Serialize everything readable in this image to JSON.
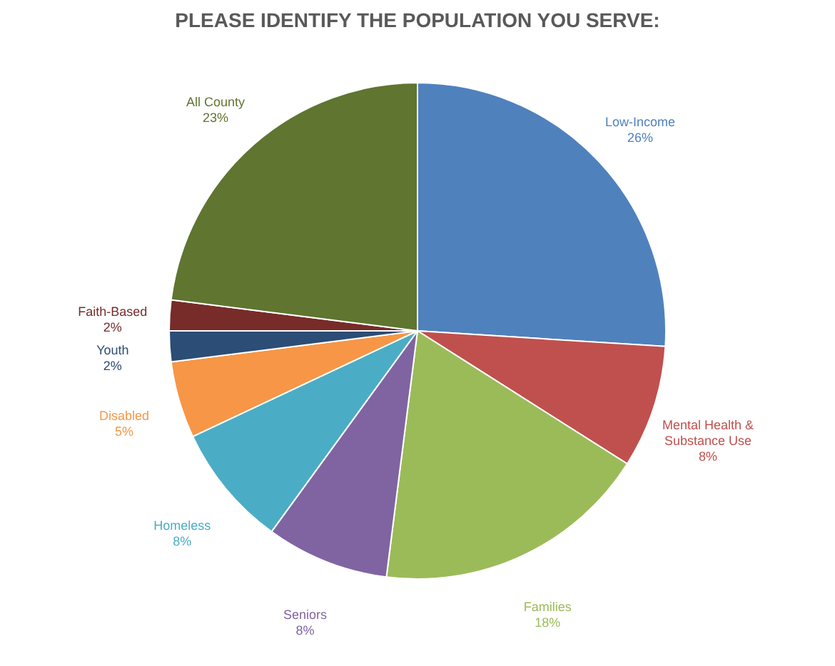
{
  "chart_data": {
    "type": "pie",
    "title": "PLEASE IDENTIFY THE POPULATION YOU SERVE:",
    "categories": [
      "Low-Income",
      "Mental Health & Substance Use",
      "Families",
      "Seniors",
      "Homeless",
      "Disabled",
      "Youth",
      "Faith-Based",
      "All County"
    ],
    "values": [
      26,
      8,
      18,
      8,
      8,
      5,
      2,
      2,
      23
    ],
    "value_labels": [
      "26%",
      "8%",
      "18%",
      "8%",
      "8%",
      "5%",
      "2%",
      "2%",
      "23%"
    ],
    "colors": [
      "#4f81bd",
      "#c0504d",
      "#9bbb59",
      "#8064a2",
      "#4bacc6",
      "#f79646",
      "#2c4d75",
      "#772c2a",
      "#5f7530"
    ],
    "legend": false
  }
}
